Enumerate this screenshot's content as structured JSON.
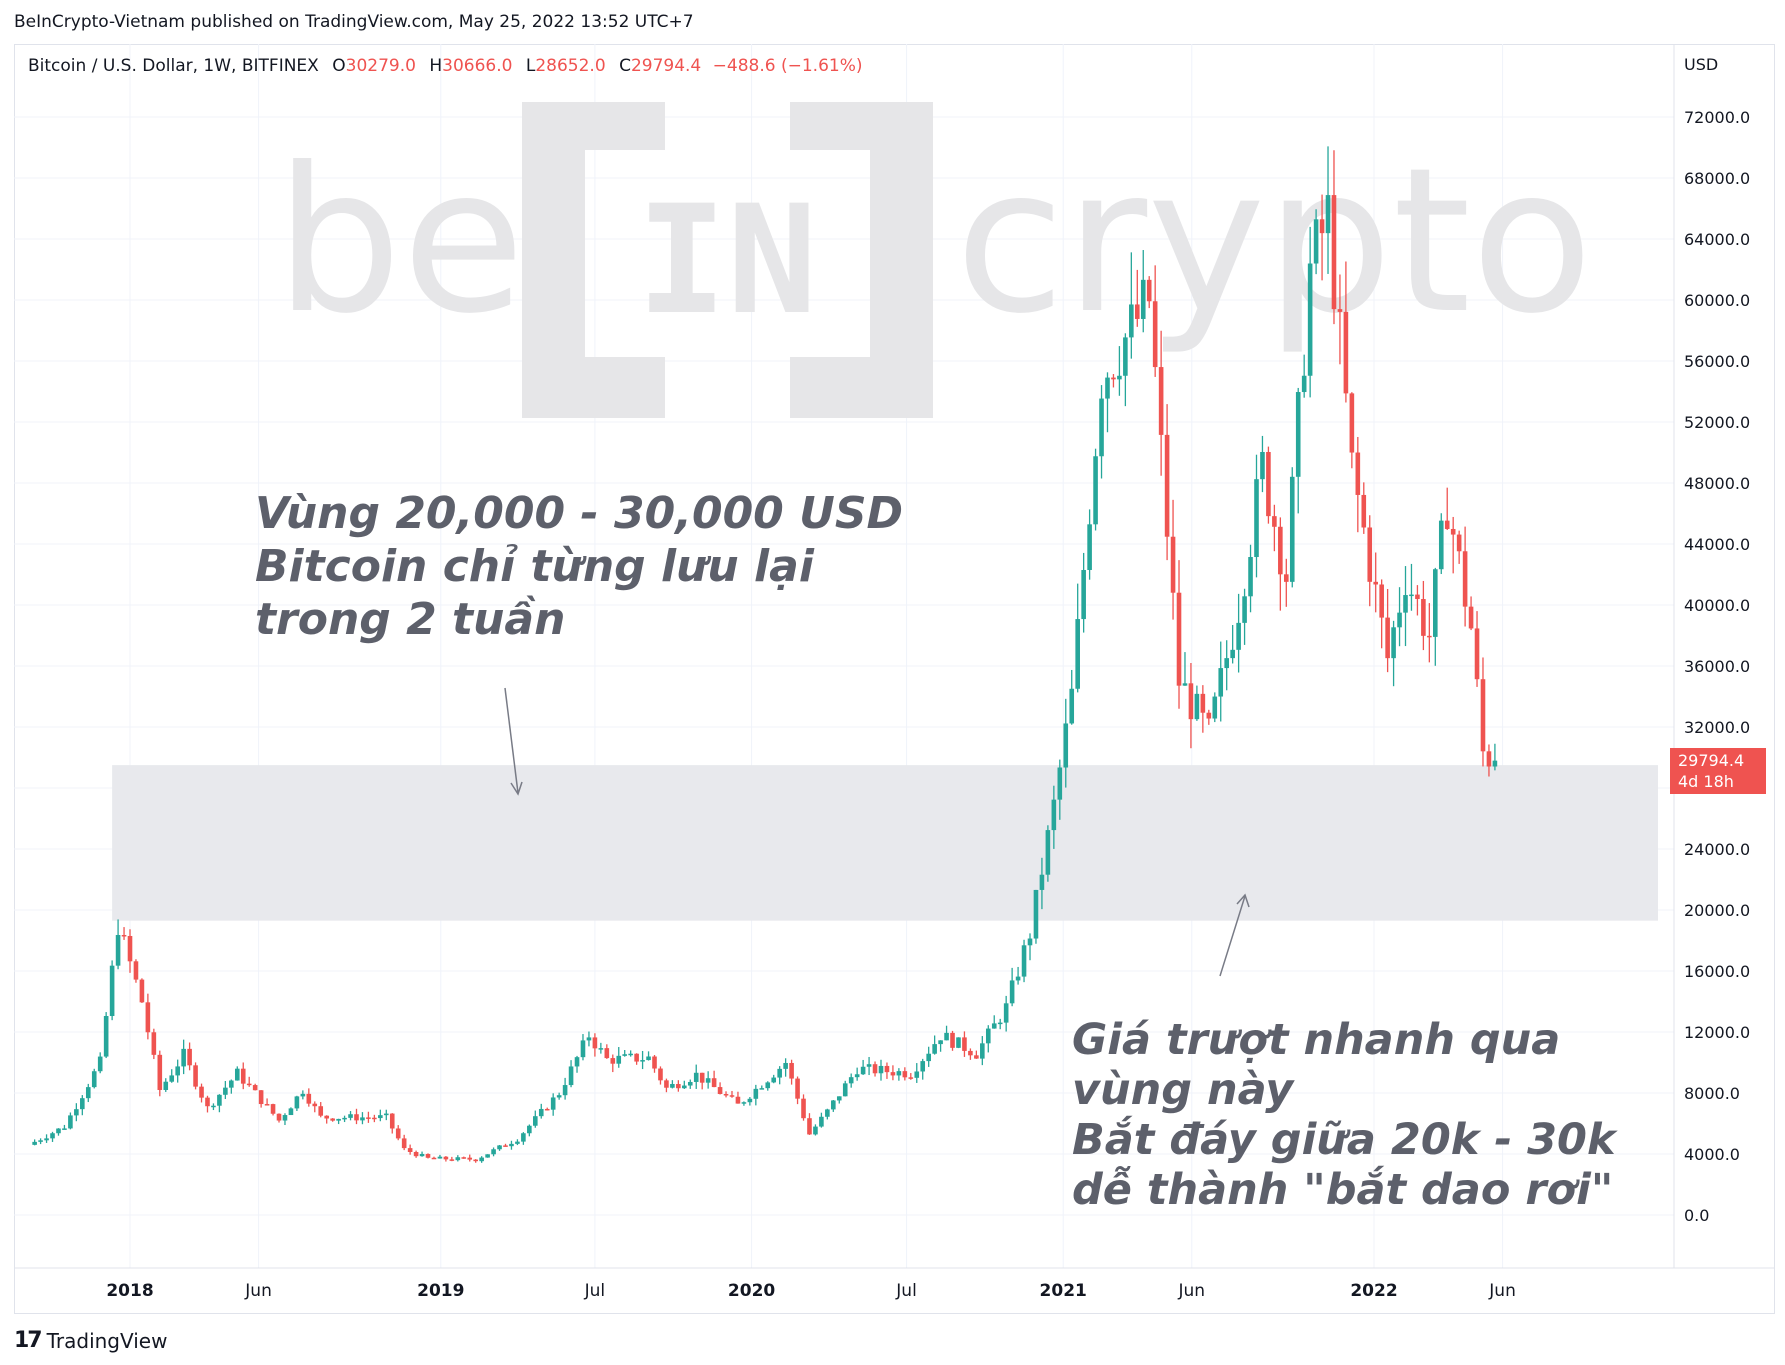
{
  "header": {
    "publisher_line": "BeInCrypto-Vietnam published on TradingView.com, May 25, 2022 13:52 UTC+7"
  },
  "legend": {
    "symbol": "Bitcoin / U.S. Dollar, 1W, BITFINEX",
    "open_label": "O",
    "open": "30279.0",
    "high_label": "H",
    "high": "30666.0",
    "low_label": "L",
    "low": "28652.0",
    "close_label": "C",
    "close": "29794.4",
    "change": "−488.6 (−1.61%)"
  },
  "price_tag": {
    "price": "29794.4",
    "countdown": "4d 18h"
  },
  "watermark": {
    "left": "be",
    "center": "IN",
    "right": "crypto"
  },
  "annotations": {
    "top_left": [
      "Vùng 20,000 - 30,000 USD",
      "Bitcoin chỉ từng lưu lại",
      "trong 2 tuần"
    ],
    "bottom_right": [
      "Giá trượt nhanh qua",
      "vùng này",
      "Bắt đáy giữa 20k - 30k",
      "dễ thành \"bắt dao rơi\""
    ]
  },
  "footer": {
    "brand": "TradingView",
    "logo_text": "17"
  },
  "colors": {
    "up": "#26a69a",
    "down": "#ef5350",
    "zone": "#e8e9ed",
    "grid": "#f0f3fa",
    "watermark": "#e6e6e8"
  },
  "chart_data": {
    "type": "candlestick",
    "symbol": "BTCUSD",
    "interval": "1W",
    "y_axis_title": "USD",
    "ylim": [
      0,
      74000
    ],
    "y_ticks": [
      0,
      4000,
      8000,
      12000,
      16000,
      20000,
      24000,
      28000,
      32000,
      36000,
      40000,
      44000,
      48000,
      52000,
      56000,
      60000,
      64000,
      68000,
      72000
    ],
    "y_tick_labels": [
      "0.0",
      "4000.0",
      "8000.0",
      "12000.0",
      "16000.0",
      "20000.0",
      "24000.0",
      "28000.0",
      "32000.0",
      "36000.0",
      "40000.0",
      "44000.0",
      "48000.0",
      "52000.0",
      "56000.0",
      "60000.0",
      "64000.0",
      "68000.0",
      "72000.0"
    ],
    "x_ticks": [
      {
        "label": "2018",
        "date": "2018-01-01",
        "bold": true
      },
      {
        "label": "Jun",
        "date": "2018-06-01",
        "bold": false
      },
      {
        "label": "2019",
        "date": "2019-01-01",
        "bold": true
      },
      {
        "label": "Jul",
        "date": "2019-07-01",
        "bold": false
      },
      {
        "label": "2020",
        "date": "2020-01-01",
        "bold": true
      },
      {
        "label": "Jul",
        "date": "2020-07-01",
        "bold": false
      },
      {
        "label": "2021",
        "date": "2021-01-01",
        "bold": true
      },
      {
        "label": "Jun",
        "date": "2021-06-01",
        "bold": false
      },
      {
        "label": "2022",
        "date": "2022-01-01",
        "bold": true
      },
      {
        "label": "Jun",
        "date": "2022-06-01",
        "bold": false
      }
    ],
    "zone": {
      "from_date": "2017-12-11",
      "low": 19300,
      "high": 29500
    },
    "last_price": 29794.4,
    "keypoints": [
      {
        "date": "2017-09-04",
        "close": 4600
      },
      {
        "date": "2017-10-16",
        "close": 5800
      },
      {
        "date": "2017-11-27",
        "close": 10000
      },
      {
        "date": "2017-12-18",
        "close": 19000
      },
      {
        "date": "2018-01-15",
        "close": 14000
      },
      {
        "date": "2018-02-05",
        "close": 8200
      },
      {
        "date": "2018-03-05",
        "close": 10500
      },
      {
        "date": "2018-04-02",
        "close": 7000
      },
      {
        "date": "2018-05-07",
        "close": 9300
      },
      {
        "date": "2018-06-25",
        "close": 6200
      },
      {
        "date": "2018-07-23",
        "close": 8200
      },
      {
        "date": "2018-08-13",
        "close": 6400
      },
      {
        "date": "2018-10-29",
        "close": 6400
      },
      {
        "date": "2018-11-19",
        "close": 4300
      },
      {
        "date": "2018-12-17",
        "close": 3700
      },
      {
        "date": "2019-02-11",
        "close": 3650
      },
      {
        "date": "2019-04-01",
        "close": 5000
      },
      {
        "date": "2019-05-20",
        "close": 8000
      },
      {
        "date": "2019-06-24",
        "close": 11800
      },
      {
        "date": "2019-07-15",
        "close": 10200
      },
      {
        "date": "2019-09-02",
        "close": 10300
      },
      {
        "date": "2019-09-23",
        "close": 8300
      },
      {
        "date": "2019-10-28",
        "close": 9200
      },
      {
        "date": "2019-12-16",
        "close": 7200
      },
      {
        "date": "2020-02-10",
        "close": 10000
      },
      {
        "date": "2020-03-09",
        "close": 5300
      },
      {
        "date": "2020-03-30",
        "close": 6800
      },
      {
        "date": "2020-05-04",
        "close": 9600
      },
      {
        "date": "2020-07-06",
        "close": 9300
      },
      {
        "date": "2020-08-10",
        "close": 11800
      },
      {
        "date": "2020-09-21",
        "close": 10600
      },
      {
        "date": "2020-10-26",
        "close": 13600
      },
      {
        "date": "2020-11-23",
        "close": 18500
      },
      {
        "date": "2020-12-21",
        "close": 26800
      },
      {
        "date": "2021-01-11",
        "close": 34000
      },
      {
        "date": "2021-02-15",
        "close": 55000
      },
      {
        "date": "2021-04-12",
        "close": 60000
      },
      {
        "date": "2021-05-17",
        "close": 35000
      },
      {
        "date": "2021-06-21",
        "close": 31500
      },
      {
        "date": "2021-07-26",
        "close": 40000
      },
      {
        "date": "2021-08-23",
        "close": 49000
      },
      {
        "date": "2021-09-20",
        "close": 42000
      },
      {
        "date": "2021-10-18",
        "close": 62000
      },
      {
        "date": "2021-11-08",
        "close": 65500
      },
      {
        "date": "2021-12-06",
        "close": 49000
      },
      {
        "date": "2022-01-17",
        "close": 36500
      },
      {
        "date": "2022-02-07",
        "close": 42000
      },
      {
        "date": "2022-03-07",
        "close": 38000
      },
      {
        "date": "2022-03-28",
        "close": 46800
      },
      {
        "date": "2022-04-25",
        "close": 38500
      },
      {
        "date": "2022-05-09",
        "close": 30300
      },
      {
        "date": "2022-05-23",
        "close": 29794.4
      }
    ]
  }
}
